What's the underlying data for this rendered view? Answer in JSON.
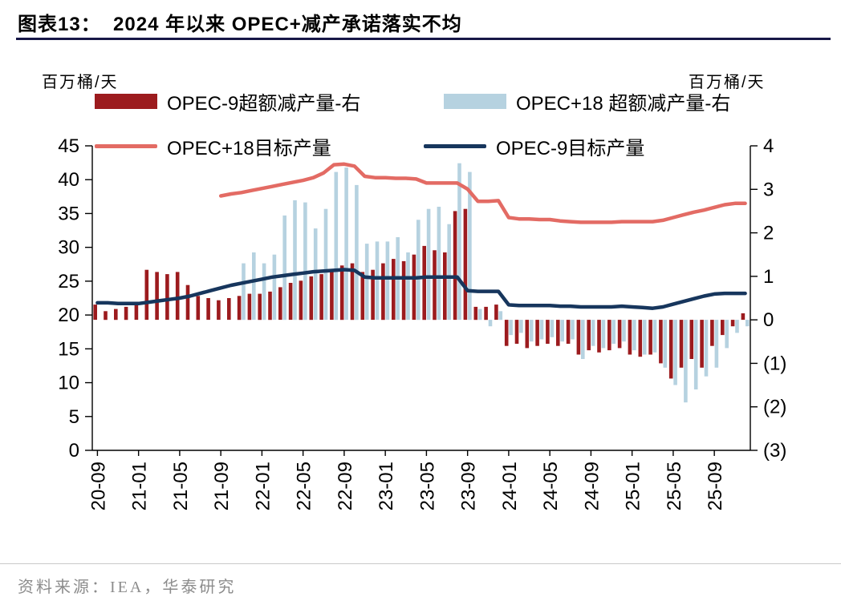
{
  "header": {
    "title": "图表13：  2024 年以来 OPEC+减产承诺落实不均"
  },
  "footer": {
    "source": "资料来源：IEA，华泰研究"
  },
  "chart_data": {
    "type": "bar",
    "subtype": "combo-bar-line-dual-axis",
    "title": "2024 年以来 OPEC+减产承诺落实不均",
    "layout": {
      "grid": false,
      "legend_position": "top-left, two rows",
      "bars_axis": "right",
      "lines_axis": "left"
    },
    "left_axis": {
      "unit": "百万桶/天",
      "min": 0,
      "max": 45,
      "ticks": [
        45,
        40,
        35,
        30,
        25,
        20,
        15,
        10,
        5,
        0
      ]
    },
    "right_axis": {
      "unit": "百万桶/天",
      "min": -3,
      "max": 4,
      "ticks": [
        4,
        3,
        2,
        1,
        0,
        -1,
        -2,
        -3
      ],
      "tick_labels": [
        "4",
        "3",
        "2",
        "1",
        "0",
        "(1)",
        "(2)",
        "(3)"
      ]
    },
    "x": {
      "months": [
        "20-09",
        "20-10",
        "20-11",
        "20-12",
        "21-01",
        "21-02",
        "21-03",
        "21-04",
        "21-05",
        "21-06",
        "21-07",
        "21-08",
        "21-09",
        "21-10",
        "21-11",
        "21-12",
        "22-01",
        "22-02",
        "22-03",
        "22-04",
        "22-05",
        "22-06",
        "22-07",
        "22-08",
        "22-09",
        "22-10",
        "22-11",
        "22-12",
        "23-01",
        "23-02",
        "23-03",
        "23-04",
        "23-05",
        "23-06",
        "23-07",
        "23-08",
        "23-09",
        "23-10",
        "23-11",
        "23-12",
        "24-01",
        "24-02",
        "24-03",
        "24-04",
        "24-05",
        "24-06",
        "24-07",
        "24-08",
        "24-09",
        "24-10",
        "24-11",
        "24-12",
        "25-01",
        "25-02",
        "25-03",
        "25-04",
        "25-05",
        "25-06",
        "25-07",
        "25-08",
        "25-09",
        "25-10",
        "25-11",
        "25-12"
      ],
      "tick_indices": [
        0,
        4,
        8,
        12,
        16,
        20,
        24,
        28,
        32,
        36,
        40,
        44,
        48,
        52,
        56,
        60
      ],
      "tick_labels": [
        "20-09",
        "21-01",
        "21-05",
        "21-09",
        "22-01",
        "22-05",
        "22-09",
        "23-01",
        "23-05",
        "23-09",
        "24-01",
        "24-05",
        "24-09",
        "25-01",
        "25-05",
        "25-09"
      ]
    },
    "series": [
      {
        "id": "opec9-excess",
        "name": "OPEC-9超额减产量-右",
        "type": "bar",
        "axis": "right",
        "color": "#9c1b1e",
        "values": [
          0.35,
          0.2,
          0.25,
          0.3,
          0.4,
          1.15,
          1.1,
          1.05,
          1.1,
          0.8,
          0.55,
          0.5,
          0.45,
          0.5,
          0.55,
          0.6,
          0.6,
          0.65,
          0.75,
          0.85,
          0.9,
          1.0,
          1.05,
          1.15,
          1.25,
          1.3,
          1.1,
          1.15,
          1.3,
          1.4,
          1.35,
          1.5,
          1.7,
          1.6,
          1.55,
          2.5,
          2.55,
          0.3,
          0.3,
          0.35,
          -0.6,
          -0.55,
          -0.65,
          -0.6,
          -0.55,
          -0.6,
          -0.55,
          -0.8,
          -0.7,
          -0.75,
          -0.7,
          -0.65,
          -0.8,
          -0.85,
          -0.8,
          -1.0,
          -1.35,
          -1.1,
          -0.9,
          -1.1,
          -0.6,
          -0.35,
          -0.15,
          0.15
        ]
      },
      {
        "id": "opec18-excess",
        "name": "OPEC+18 超额减产量-右",
        "type": "bar",
        "axis": "right",
        "color": "#b6d2e0",
        "values": [
          null,
          null,
          null,
          null,
          null,
          null,
          null,
          null,
          null,
          null,
          null,
          null,
          null,
          null,
          1.3,
          1.55,
          1.3,
          1.5,
          2.4,
          2.75,
          2.7,
          2.1,
          2.55,
          3.4,
          3.5,
          3.1,
          1.75,
          1.8,
          1.8,
          1.9,
          1.55,
          2.3,
          2.55,
          2.6,
          2.2,
          3.6,
          3.4,
          0.25,
          -0.15,
          0.2,
          -0.35,
          -0.3,
          -0.5,
          -0.45,
          -0.4,
          -0.5,
          -0.45,
          -0.9,
          -0.6,
          -0.65,
          -0.55,
          -0.5,
          -0.7,
          -0.8,
          -0.75,
          -1.1,
          -1.5,
          -1.9,
          -1.6,
          -1.3,
          -1.1,
          -0.65,
          -0.3,
          -0.15
        ]
      },
      {
        "id": "opec18-target",
        "name": "OPEC+18目标产量",
        "type": "line",
        "axis": "left",
        "color": "#e36b64",
        "values": [
          null,
          null,
          null,
          null,
          null,
          null,
          null,
          null,
          null,
          null,
          null,
          null,
          37.6,
          37.9,
          38.1,
          38.4,
          38.7,
          39.0,
          39.3,
          39.6,
          39.9,
          40.3,
          41.0,
          42.2,
          42.3,
          42.0,
          40.5,
          40.3,
          40.3,
          40.2,
          40.2,
          40.1,
          39.5,
          39.5,
          39.5,
          39.5,
          38.6,
          36.8,
          36.8,
          36.9,
          34.4,
          34.2,
          34.2,
          34.1,
          34.1,
          33.9,
          33.8,
          33.7,
          33.7,
          33.7,
          33.7,
          33.8,
          33.8,
          33.8,
          33.8,
          34.0,
          34.4,
          34.8,
          35.2,
          35.5,
          35.9,
          36.3,
          36.5,
          36.5
        ]
      },
      {
        "id": "opec9-target",
        "name": "OPEC-9目标产量",
        "type": "line",
        "axis": "left",
        "color": "#17365d",
        "values": [
          21.8,
          21.8,
          21.7,
          21.7,
          21.7,
          21.9,
          22.1,
          22.3,
          22.5,
          22.8,
          23.2,
          23.6,
          24.0,
          24.4,
          24.7,
          25.0,
          25.3,
          25.6,
          25.8,
          26.0,
          26.2,
          26.4,
          26.5,
          26.6,
          26.7,
          26.6,
          25.6,
          25.5,
          25.5,
          25.5,
          25.5,
          25.5,
          25.6,
          25.6,
          25.6,
          25.6,
          23.6,
          23.5,
          23.5,
          23.5,
          21.5,
          21.4,
          21.4,
          21.4,
          21.4,
          21.3,
          21.3,
          21.2,
          21.2,
          21.2,
          21.2,
          21.3,
          21.2,
          21.1,
          21.0,
          21.2,
          21.6,
          22.0,
          22.4,
          22.8,
          23.1,
          23.2,
          23.2,
          23.2
        ]
      }
    ]
  }
}
